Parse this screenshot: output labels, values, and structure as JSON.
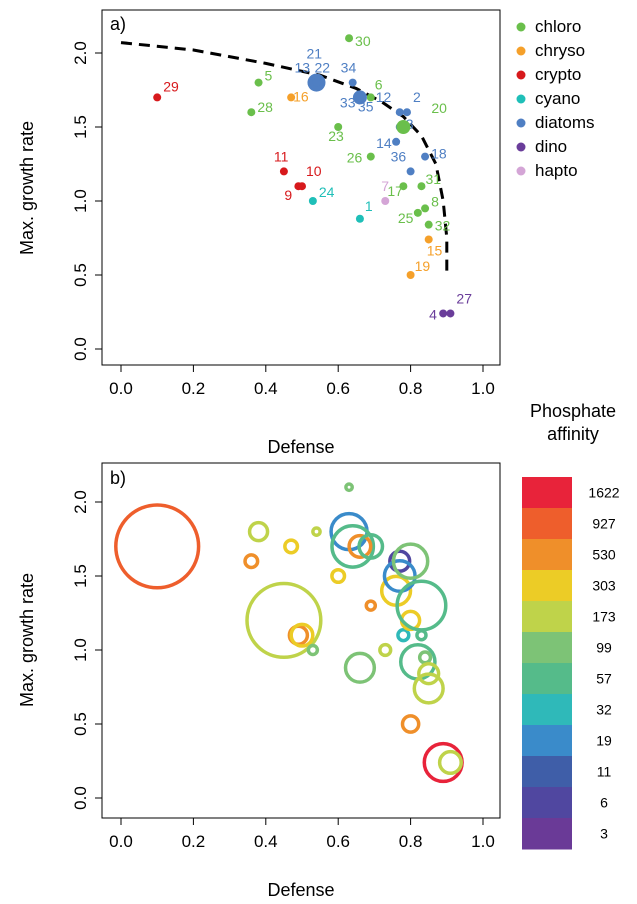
{
  "chart_data": [
    {
      "panel": "a)",
      "type": "scatter",
      "xlabel": "Defense",
      "ylabel": "Max. growth rate",
      "xlim": [
        0,
        1
      ],
      "ylim": [
        0,
        2.1
      ],
      "xticks": [
        "0.0",
        "0.2",
        "0.4",
        "0.6",
        "0.8",
        "1.0"
      ],
      "yticks": [
        "0.0",
        "0.5",
        "1.0",
        "1.5",
        "2.0"
      ],
      "legend": {
        "position": "right",
        "entries": [
          {
            "label": "chloro",
            "color": "#6abf4b"
          },
          {
            "label": "chryso",
            "color": "#f5a02a"
          },
          {
            "label": "crypto",
            "color": "#d7191c"
          },
          {
            "label": "cyano",
            "color": "#1fbfb8"
          },
          {
            "label": "diatoms",
            "color": "#4f7fc3"
          },
          {
            "label": "dino",
            "color": "#6a3d9a"
          },
          {
            "label": "hapto",
            "color": "#d4a5d6"
          }
        ]
      },
      "points": [
        {
          "id": "1",
          "group": "cyano",
          "x": 0.66,
          "y": 0.88
        },
        {
          "id": "2",
          "group": "diatoms",
          "x": 0.79,
          "y": 1.6
        },
        {
          "id": "3",
          "group": "diatoms",
          "x": 0.77,
          "y": 1.5
        },
        {
          "id": "4",
          "group": "dino",
          "x": 0.89,
          "y": 0.24
        },
        {
          "id": "5",
          "group": "chloro",
          "x": 0.38,
          "y": 1.8
        },
        {
          "id": "6",
          "group": "chloro",
          "x": 0.69,
          "y": 1.7
        },
        {
          "id": "7",
          "group": "hapto",
          "x": 0.73,
          "y": 1.0
        },
        {
          "id": "8",
          "group": "chloro",
          "x": 0.84,
          "y": 0.95
        },
        {
          "id": "9",
          "group": "crypto",
          "x": 0.49,
          "y": 1.1
        },
        {
          "id": "10",
          "group": "crypto",
          "x": 0.5,
          "y": 1.1
        },
        {
          "id": "11",
          "group": "crypto",
          "x": 0.45,
          "y": 1.2
        },
        {
          "id": "12",
          "group": "diatoms",
          "x": 0.77,
          "y": 1.6
        },
        {
          "id": "13",
          "group": "diatoms",
          "x": 0.54,
          "y": 1.8
        },
        {
          "id": "14",
          "group": "diatoms",
          "x": 0.76,
          "y": 1.4
        },
        {
          "id": "15",
          "group": "chryso",
          "x": 0.85,
          "y": 0.74
        },
        {
          "id": "16",
          "group": "chryso",
          "x": 0.47,
          "y": 1.7
        },
        {
          "id": "17",
          "group": "chloro",
          "x": 0.78,
          "y": 1.1
        },
        {
          "id": "18",
          "group": "diatoms",
          "x": 0.84,
          "y": 1.3
        },
        {
          "id": "19",
          "group": "chryso",
          "x": 0.8,
          "y": 0.5
        },
        {
          "id": "20",
          "group": "chloro",
          "x": 0.78,
          "y": 1.5
        },
        {
          "id": "21",
          "group": "diatoms",
          "x": 0.54,
          "y": 1.8
        },
        {
          "id": "22",
          "group": "diatoms",
          "x": 0.54,
          "y": 1.8
        },
        {
          "id": "23",
          "group": "chloro",
          "x": 0.6,
          "y": 1.5
        },
        {
          "id": "24",
          "group": "cyano",
          "x": 0.53,
          "y": 1.0
        },
        {
          "id": "25",
          "group": "chloro",
          "x": 0.82,
          "y": 0.92
        },
        {
          "id": "26",
          "group": "chloro",
          "x": 0.69,
          "y": 1.3
        },
        {
          "id": "27",
          "group": "dino",
          "x": 0.91,
          "y": 0.24
        },
        {
          "id": "28",
          "group": "chloro",
          "x": 0.36,
          "y": 1.6
        },
        {
          "id": "29",
          "group": "crypto",
          "x": 0.1,
          "y": 1.7
        },
        {
          "id": "30",
          "group": "chloro",
          "x": 0.63,
          "y": 2.1
        },
        {
          "id": "31",
          "group": "chloro",
          "x": 0.83,
          "y": 1.1
        },
        {
          "id": "32",
          "group": "chloro",
          "x": 0.85,
          "y": 0.84
        },
        {
          "id": "33",
          "group": "diatoms",
          "x": 0.66,
          "y": 1.7
        },
        {
          "id": "34",
          "group": "diatoms",
          "x": 0.64,
          "y": 1.8
        },
        {
          "id": "35",
          "group": "diatoms",
          "x": 0.66,
          "y": 1.7
        },
        {
          "id": "36",
          "group": "diatoms",
          "x": 0.8,
          "y": 1.2
        }
      ],
      "tradeoff_curve": {
        "style": "dashed",
        "x": [
          0.0,
          0.2,
          0.4,
          0.55,
          0.65,
          0.72,
          0.78,
          0.83,
          0.87,
          0.89,
          0.9,
          0.9
        ],
        "y": [
          2.07,
          2.02,
          1.93,
          1.85,
          1.76,
          1.67,
          1.57,
          1.44,
          1.25,
          1.0,
          0.75,
          0.5
        ]
      }
    },
    {
      "panel": "b)",
      "type": "bubble",
      "xlabel": "Defense",
      "ylabel": "Max. growth rate",
      "xlim": [
        0,
        1
      ],
      "ylim": [
        0,
        2.1
      ],
      "xticks": [
        "0.0",
        "0.2",
        "0.4",
        "0.6",
        "0.8",
        "1.0"
      ],
      "yticks": [
        "0.0",
        "0.5",
        "1.0",
        "1.5",
        "2.0"
      ],
      "colorbar": {
        "title": [
          "Phosphate",
          "affinity"
        ],
        "labels": [
          "1622",
          "927",
          "530",
          "303",
          "173",
          "99",
          "57",
          "32",
          "19",
          "11",
          "6",
          "3"
        ],
        "colors": [
          "#e8233a",
          "#ee5e2c",
          "#ef8f2a",
          "#eccc26",
          "#bfd34a",
          "#7dc376",
          "#55bb8a",
          "#2fb9b9",
          "#3a8bca",
          "#3f5ea8",
          "#5047a0",
          "#6a3a97"
        ]
      },
      "bubbles": [
        {
          "x": 0.1,
          "y": 1.7,
          "size": 4.6,
          "color": "#ee5e2c"
        },
        {
          "x": 0.36,
          "y": 1.6,
          "size": 0.7,
          "color": "#ef8f2a"
        },
        {
          "x": 0.38,
          "y": 1.8,
          "size": 1.0,
          "color": "#bfd34a"
        },
        {
          "x": 0.45,
          "y": 1.2,
          "size": 4.1,
          "color": "#bfd34a"
        },
        {
          "x": 0.47,
          "y": 1.7,
          "size": 0.7,
          "color": "#eccc26"
        },
        {
          "x": 0.49,
          "y": 1.1,
          "size": 1.0,
          "color": "#ef8f2a"
        },
        {
          "x": 0.5,
          "y": 1.1,
          "size": 1.2,
          "color": "#eccc26"
        },
        {
          "x": 0.53,
          "y": 1.0,
          "size": 0.5,
          "color": "#7dc376"
        },
        {
          "x": 0.54,
          "y": 1.8,
          "size": 0.4,
          "color": "#bfd34a"
        },
        {
          "x": 0.6,
          "y": 1.5,
          "size": 0.7,
          "color": "#eccc26"
        },
        {
          "x": 0.63,
          "y": 2.1,
          "size": 0.35,
          "color": "#7dc376"
        },
        {
          "x": 0.63,
          "y": 1.8,
          "size": 2.0,
          "color": "#3a8bca"
        },
        {
          "x": 0.64,
          "y": 1.7,
          "size": 2.3,
          "color": "#55bb8a"
        },
        {
          "x": 0.66,
          "y": 0.88,
          "size": 1.6,
          "color": "#7dc376"
        },
        {
          "x": 0.66,
          "y": 1.7,
          "size": 1.2,
          "color": "#ef8f2a"
        },
        {
          "x": 0.69,
          "y": 1.3,
          "size": 0.5,
          "color": "#ef8f2a"
        },
        {
          "x": 0.69,
          "y": 1.7,
          "size": 1.3,
          "color": "#55bb8a"
        },
        {
          "x": 0.73,
          "y": 1.0,
          "size": 0.6,
          "color": "#bfd34a"
        },
        {
          "x": 0.76,
          "y": 1.4,
          "size": 1.6,
          "color": "#eccc26"
        },
        {
          "x": 0.77,
          "y": 1.6,
          "size": 1.1,
          "color": "#5047a0"
        },
        {
          "x": 0.77,
          "y": 1.5,
          "size": 1.7,
          "color": "#3a8bca"
        },
        {
          "x": 0.78,
          "y": 1.1,
          "size": 0.6,
          "color": "#2fb9b9"
        },
        {
          "x": 0.8,
          "y": 1.6,
          "size": 1.9,
          "color": "#7dc376"
        },
        {
          "x": 0.8,
          "y": 1.2,
          "size": 1.0,
          "color": "#eccc26"
        },
        {
          "x": 0.8,
          "y": 0.5,
          "size": 0.9,
          "color": "#ef8f2a"
        },
        {
          "x": 0.83,
          "y": 1.1,
          "size": 0.5,
          "color": "#55bb8a"
        },
        {
          "x": 0.83,
          "y": 1.3,
          "size": 2.7,
          "color": "#55bb8a"
        },
        {
          "x": 0.82,
          "y": 0.92,
          "size": 1.9,
          "color": "#55bb8a"
        },
        {
          "x": 0.84,
          "y": 0.95,
          "size": 0.6,
          "color": "#7dc376"
        },
        {
          "x": 0.85,
          "y": 0.84,
          "size": 1.1,
          "color": "#bfd34a"
        },
        {
          "x": 0.85,
          "y": 0.74,
          "size": 1.6,
          "color": "#bfd34a"
        },
        {
          "x": 0.89,
          "y": 0.24,
          "size": 2.1,
          "color": "#e8233a"
        },
        {
          "x": 0.91,
          "y": 0.24,
          "size": 1.2,
          "color": "#bfd34a"
        }
      ]
    }
  ]
}
